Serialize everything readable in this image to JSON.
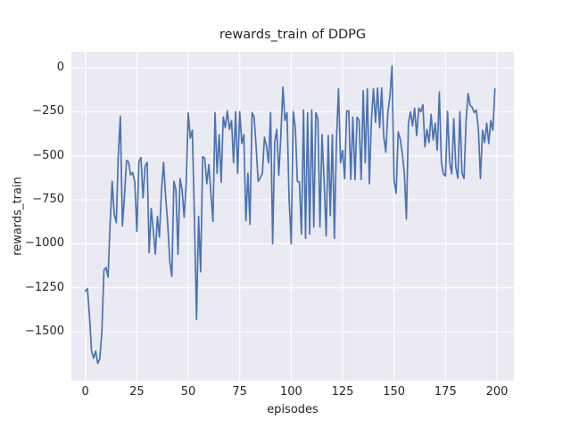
{
  "chart_data": {
    "type": "line",
    "title": "rewards_train of DDPG",
    "xlabel": "episodes",
    "ylabel": "rewards_train",
    "x_description": "episode index 0-199, one reward value per training episode",
    "x_ticks": [
      0,
      25,
      50,
      75,
      100,
      125,
      150,
      175,
      200
    ],
    "y_ticks": [
      0,
      -250,
      -500,
      -750,
      -1000,
      -1250,
      -1500
    ],
    "xlim": [
      -7,
      208
    ],
    "ylim": [
      -1780,
      92
    ],
    "grid": true,
    "legend": "none",
    "style": "seaborn-darkgrid",
    "line_color": "#4c72b0",
    "panel_color": "#eaeaf2",
    "grid_color": "#ffffff",
    "text_color": "#262626",
    "series": [
      {
        "name": "rewards_train",
        "values": [
          -1270,
          -1255,
          -1410,
          -1610,
          -1650,
          -1610,
          -1680,
          -1655,
          -1500,
          -1150,
          -1135,
          -1190,
          -890,
          -645,
          -830,
          -880,
          -500,
          -275,
          -899,
          -730,
          -527,
          -535,
          -610,
          -595,
          -650,
          -930,
          -535,
          -510,
          -740,
          -560,
          -537,
          -1050,
          -800,
          -923,
          -1059,
          -845,
          -962,
          -700,
          -537,
          -737,
          -886,
          -1100,
          -1186,
          -645,
          -695,
          -1060,
          -630,
          -695,
          -850,
          -660,
          -257,
          -400,
          -355,
          -845,
          -1430,
          -845,
          -1160,
          -505,
          -515,
          -660,
          -550,
          -715,
          -873,
          -255,
          -600,
          -380,
          -650,
          -280,
          -340,
          -245,
          -350,
          -300,
          -540,
          -250,
          -600,
          -250,
          -430,
          -380,
          -870,
          -600,
          -890,
          -255,
          -280,
          -450,
          -645,
          -625,
          -600,
          -395,
          -445,
          -540,
          -255,
          -1000,
          -425,
          -350,
          -610,
          -385,
          -110,
          -300,
          -255,
          -745,
          -1000,
          -250,
          -340,
          -645,
          -650,
          -945,
          -240,
          -970,
          -255,
          -945,
          -240,
          -905,
          -255,
          -290,
          -905,
          -380,
          -645,
          -955,
          -385,
          -840,
          -380,
          -970,
          -415,
          -120,
          -540,
          -470,
          -630,
          -245,
          -245,
          -635,
          -280,
          -635,
          -280,
          -300,
          -635,
          -130,
          -540,
          -120,
          -660,
          -300,
          -120,
          -310,
          -115,
          -340,
          -115,
          -390,
          -480,
          -250,
          -160,
          10,
          -640,
          -713,
          -365,
          -405,
          -485,
          -600,
          -860,
          -315,
          -250,
          -330,
          -230,
          -385,
          -230,
          -250,
          -210,
          -450,
          -350,
          -425,
          -265,
          -410,
          -315,
          -468,
          -138,
          -536,
          -603,
          -615,
          -248,
          -535,
          -603,
          -290,
          -565,
          -628,
          -250,
          -600,
          -630,
          -300,
          -147,
          -214,
          -225,
          -255,
          -240,
          -350,
          -630,
          -355,
          -425,
          -315,
          -430,
          -300,
          -355,
          -120
        ]
      }
    ]
  }
}
